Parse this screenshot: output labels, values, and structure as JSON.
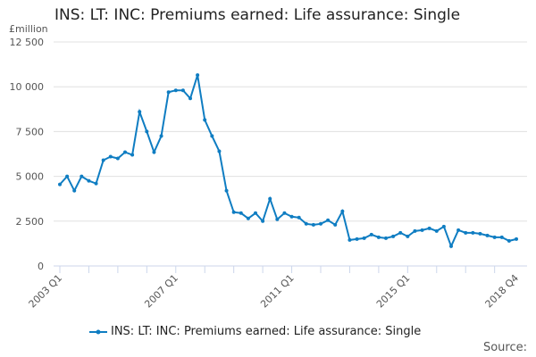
{
  "title": "INS: LT: INC: Premiums earned: Life assurance: Single",
  "source_label": "Source:",
  "chart_data": {
    "type": "line",
    "title": "INS: LT: INC: Premiums earned: Life assurance: Single",
    "ylabel": "£million",
    "ylim": [
      0,
      12500
    ],
    "yticks": [
      0,
      2500,
      5000,
      7500,
      10000,
      12500
    ],
    "ytick_labels": [
      "0",
      "2 500",
      "5 000",
      "7 500",
      "10 000",
      "12 500"
    ],
    "xtick_labels": [
      "2003 Q1",
      "2007 Q1",
      "2011 Q1",
      "2015 Q1",
      "2018 Q4"
    ],
    "x_start": "2003 Q1",
    "x_end": "2018 Q4",
    "grid": true,
    "legend": "bottom",
    "color": "#0f7dc2",
    "series": [
      {
        "name": "INS: LT: INC: Premiums earned: Life assurance: Single",
        "values": [
          4550,
          5000,
          4200,
          5000,
          4750,
          4600,
          5900,
          6100,
          6000,
          6350,
          6200,
          8600,
          7500,
          6350,
          7250,
          9700,
          9800,
          9800,
          9350,
          10650,
          8150,
          7250,
          6400,
          4200,
          3000,
          2950,
          2650,
          2950,
          2500,
          3750,
          2600,
          2950,
          2750,
          2700,
          2350,
          2300,
          2350,
          2550,
          2300,
          3050,
          1450,
          1500,
          1550,
          1750,
          1600,
          1550,
          1650,
          1850,
          1650,
          1950,
          2000,
          2100,
          1950,
          2200,
          1100,
          2000,
          1850,
          1850,
          1800,
          1700,
          1600,
          1600,
          1400,
          1500
        ]
      }
    ]
  }
}
